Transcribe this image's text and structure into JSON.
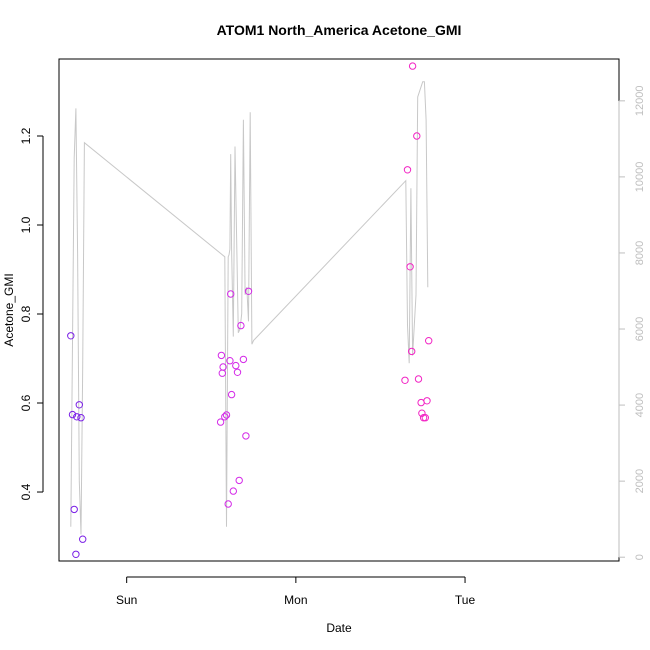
{
  "chart_data": {
    "type": "scatter",
    "title": "ATOM1 North_America Acetone_GMI",
    "xlabel": "Date",
    "ylabel": "Acetone_GMI",
    "x_ticks": [
      "Sun",
      "Mon",
      "Tue"
    ],
    "y_ticks": [
      "0.4",
      "0.6",
      "0.8",
      "1.0",
      "1.2"
    ],
    "y_ticks_right": [
      "0",
      "2000",
      "4000",
      "6000",
      "8000",
      "10000",
      "12000"
    ],
    "xlim_days": [
      -0.4,
      2.91
    ],
    "ylim": [
      0.245,
      1.373
    ],
    "ylim_right": [
      -100,
      13100
    ],
    "grid": false,
    "colors": {
      "line": "#c8c8c8",
      "right_axis": "#bebebe",
      "day1": "#7a1fe6",
      "day2": "#d42ae8",
      "day3": "#f224c4"
    },
    "line_series": {
      "name": "",
      "axis": "right",
      "points": [
        [
          -0.33,
          800
        ],
        [
          -0.31,
          10500
        ],
        [
          -0.3,
          11800
        ],
        [
          -0.29,
          8000
        ],
        [
          -0.28,
          2000
        ],
        [
          -0.27,
          600
        ],
        [
          -0.26,
          5000
        ],
        [
          -0.25,
          10900
        ],
        [
          0.58,
          7900
        ],
        [
          0.59,
          800
        ],
        [
          0.6,
          7900
        ],
        [
          0.605,
          7950
        ],
        [
          0.61,
          8100
        ],
        [
          0.615,
          10600
        ],
        [
          0.62,
          8100
        ],
        [
          0.63,
          5800
        ],
        [
          0.64,
          10800
        ],
        [
          0.66,
          5900
        ],
        [
          0.67,
          6000
        ],
        [
          0.68,
          6400
        ],
        [
          0.69,
          11500
        ],
        [
          0.7,
          6900
        ],
        [
          0.71,
          7100
        ],
        [
          0.72,
          6200
        ],
        [
          0.73,
          11700
        ],
        [
          0.74,
          5600
        ],
        [
          0.75,
          5700
        ],
        [
          1.65,
          9900
        ],
        [
          1.66,
          6100
        ],
        [
          1.67,
          5100
        ],
        [
          1.68,
          9700
        ],
        [
          1.69,
          5300
        ],
        [
          1.71,
          6900
        ],
        [
          1.72,
          12100
        ],
        [
          1.75,
          12500
        ],
        [
          1.76,
          12500
        ],
        [
          1.77,
          11500
        ],
        [
          1.78,
          7100
        ]
      ]
    },
    "points": [
      {
        "x": -0.33,
        "y": 0.751,
        "group": "day1"
      },
      {
        "x": -0.32,
        "y": 0.574,
        "group": "day1"
      },
      {
        "x": -0.31,
        "y": 0.361,
        "group": "day1"
      },
      {
        "x": -0.3,
        "y": 0.26,
        "group": "day1"
      },
      {
        "x": -0.295,
        "y": 0.569,
        "group": "day1"
      },
      {
        "x": -0.28,
        "y": 0.596,
        "group": "day1"
      },
      {
        "x": -0.27,
        "y": 0.567,
        "group": "day1"
      },
      {
        "x": -0.26,
        "y": 0.294,
        "group": "day1"
      },
      {
        "x": 0.555,
        "y": 0.557,
        "group": "day2"
      },
      {
        "x": 0.56,
        "y": 0.707,
        "group": "day2"
      },
      {
        "x": 0.565,
        "y": 0.667,
        "group": "day2"
      },
      {
        "x": 0.57,
        "y": 0.681,
        "group": "day2"
      },
      {
        "x": 0.58,
        "y": 0.569,
        "group": "day2"
      },
      {
        "x": 0.59,
        "y": 0.573,
        "group": "day2"
      },
      {
        "x": 0.6,
        "y": 0.373,
        "group": "day2"
      },
      {
        "x": 0.61,
        "y": 0.695,
        "group": "day2"
      },
      {
        "x": 0.615,
        "y": 0.845,
        "group": "day2"
      },
      {
        "x": 0.62,
        "y": 0.619,
        "group": "day2"
      },
      {
        "x": 0.63,
        "y": 0.402,
        "group": "day2"
      },
      {
        "x": 0.645,
        "y": 0.684,
        "group": "day2"
      },
      {
        "x": 0.655,
        "y": 0.669,
        "group": "day2"
      },
      {
        "x": 0.665,
        "y": 0.426,
        "group": "day2"
      },
      {
        "x": 0.675,
        "y": 0.774,
        "group": "day2"
      },
      {
        "x": 0.69,
        "y": 0.698,
        "group": "day2"
      },
      {
        "x": 0.705,
        "y": 0.526,
        "group": "day2"
      },
      {
        "x": 0.72,
        "y": 0.851,
        "group": "day2"
      },
      {
        "x": 1.645,
        "y": 0.651,
        "group": "day3"
      },
      {
        "x": 1.66,
        "y": 1.124,
        "group": "day3"
      },
      {
        "x": 1.675,
        "y": 0.906,
        "group": "day3"
      },
      {
        "x": 1.685,
        "y": 0.716,
        "group": "day3"
      },
      {
        "x": 1.69,
        "y": 1.357,
        "group": "day3"
      },
      {
        "x": 1.715,
        "y": 1.2,
        "group": "day3"
      },
      {
        "x": 1.725,
        "y": 0.654,
        "group": "day3"
      },
      {
        "x": 1.74,
        "y": 0.601,
        "group": "day3"
      },
      {
        "x": 1.745,
        "y": 0.577,
        "group": "day3"
      },
      {
        "x": 1.755,
        "y": 0.567,
        "group": "day3"
      },
      {
        "x": 1.765,
        "y": 0.567,
        "group": "day3"
      },
      {
        "x": 1.775,
        "y": 0.605,
        "group": "day3"
      },
      {
        "x": 1.785,
        "y": 0.74,
        "group": "day3"
      }
    ]
  }
}
